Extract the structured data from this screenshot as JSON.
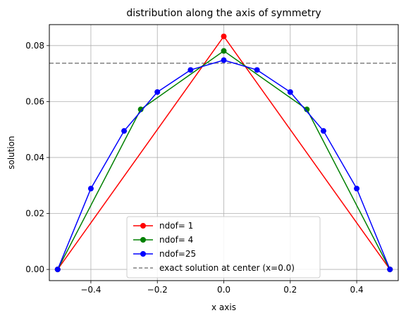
{
  "chart_data": {
    "type": "line",
    "title": "distribution along the axis of symmetry",
    "xlabel": "x axis",
    "ylabel": "solution",
    "xlim": [
      -0.525,
      0.525
    ],
    "ylim": [
      -0.004,
      0.0875
    ],
    "grid": true,
    "legend_position": "lower-center",
    "xticks": [
      -0.4,
      -0.2,
      0.0,
      0.2,
      0.4
    ],
    "xtick_labels": [
      "−0.4",
      "−0.2",
      "0.0",
      "0.2",
      "0.4"
    ],
    "yticks": [
      0.0,
      0.02,
      0.04,
      0.06,
      0.08
    ],
    "ytick_labels": [
      "0.00",
      "0.02",
      "0.04",
      "0.06",
      "0.08"
    ],
    "series": [
      {
        "name": "ndof= 1",
        "color": "#ff0000",
        "marker": "circle",
        "x": [
          -0.5,
          0.0,
          0.5
        ],
        "y": [
          0.0,
          0.0833,
          0.0
        ]
      },
      {
        "name": "ndof= 4",
        "color": "#008000",
        "marker": "circle",
        "x": [
          -0.5,
          -0.25,
          0.0,
          0.25,
          0.5
        ],
        "y": [
          0.0,
          0.0572,
          0.0781,
          0.0572,
          0.0
        ]
      },
      {
        "name": "ndof=25",
        "color": "#0000ff",
        "marker": "circle",
        "x": [
          -0.5,
          -0.4,
          -0.3,
          -0.2,
          -0.1,
          0.0,
          0.1,
          0.2,
          0.3,
          0.4,
          0.5
        ],
        "y": [
          0.0,
          0.0289,
          0.0495,
          0.0634,
          0.0713,
          0.0748,
          0.0713,
          0.0634,
          0.0495,
          0.0289,
          0.0
        ]
      }
    ],
    "reference_line": {
      "name": "exact solution at center (x=0.0)",
      "color": "#808080",
      "style": "dashed",
      "y": 0.0737
    }
  }
}
